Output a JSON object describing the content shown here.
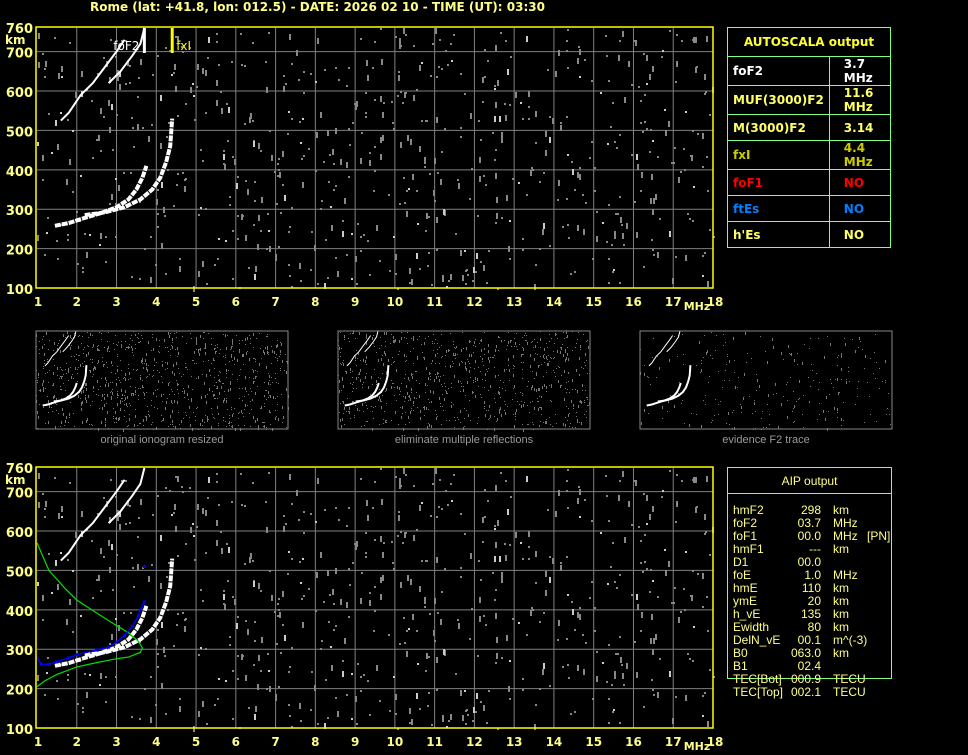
{
  "header": {
    "title": "Rome (lat: +41.8, lon: 012.5) - DATE: 2026 02 10 - TIME (UT): 03:30"
  },
  "colors": {
    "axis": "#ffff00",
    "grid": "#808080",
    "trace": "#ffffff",
    "noise": "#888888",
    "foF2_marker": "#ffffff",
    "fxI_marker": "#ffff00",
    "profile": "#00e000",
    "aip_trace": "#0000ff",
    "table_border": "#80ff80"
  },
  "chart_data": [
    {
      "type": "scatter",
      "name_plot": "upper-ionogram",
      "xlabel": "MHz",
      "ylabel": "km",
      "xlim": [
        1,
        18
      ],
      "ylim": [
        100,
        760
      ],
      "xticks": [
        "1",
        "2",
        "3",
        "4",
        "5",
        "6",
        "7",
        "8",
        "9",
        "10",
        "11",
        "12",
        "13",
        "14",
        "15",
        "16",
        "17",
        "18"
      ],
      "yticks": [
        "760",
        "700",
        "600",
        "500",
        "400",
        "300",
        "200",
        "100"
      ],
      "grid": true,
      "markers": [
        {
          "label": "foF2",
          "x": 3.7
        },
        {
          "label": "fxI",
          "x": 4.4
        }
      ],
      "traces": {
        "o_mode": [
          [
            1.45,
            258
          ],
          [
            1.8,
            265
          ],
          [
            2.2,
            278
          ],
          [
            2.6,
            290
          ],
          [
            3.0,
            305
          ],
          [
            3.3,
            325
          ],
          [
            3.5,
            350
          ],
          [
            3.65,
            380
          ],
          [
            3.75,
            410
          ]
        ],
        "x_mode": [
          [
            2.2,
            285
          ],
          [
            2.7,
            292
          ],
          [
            3.2,
            305
          ],
          [
            3.6,
            325
          ],
          [
            3.9,
            350
          ],
          [
            4.1,
            380
          ],
          [
            4.25,
            420
          ],
          [
            4.35,
            460
          ],
          [
            4.4,
            530
          ]
        ],
        "second_hop_o": [
          [
            1.6,
            525
          ],
          [
            1.8,
            545
          ],
          [
            2.1,
            590
          ],
          [
            2.4,
            620
          ],
          [
            2.7,
            660
          ],
          [
            3.0,
            700
          ],
          [
            3.2,
            730
          ]
        ],
        "second_hop_x": [
          [
            2.8,
            620
          ],
          [
            3.1,
            650
          ],
          [
            3.4,
            690
          ],
          [
            3.6,
            720
          ],
          [
            3.7,
            760
          ]
        ]
      }
    },
    {
      "type": "scatter",
      "name_plot": "lower-ionogram",
      "xlabel": "MHz",
      "ylabel": "km",
      "xlim": [
        1,
        18
      ],
      "ylim": [
        100,
        760
      ],
      "xticks": [
        "1",
        "2",
        "3",
        "4",
        "5",
        "6",
        "7",
        "8",
        "9",
        "10",
        "11",
        "12",
        "13",
        "14",
        "15",
        "16",
        "17",
        "18"
      ],
      "yticks": [
        "760",
        "700",
        "600",
        "500",
        "400",
        "300",
        "200",
        "100"
      ],
      "grid": true,
      "profile": [
        [
          1.0,
          570
        ],
        [
          1.3,
          500
        ],
        [
          1.7,
          455
        ],
        [
          2.0,
          425
        ],
        [
          2.5,
          392
        ],
        [
          3.0,
          360
        ],
        [
          3.3,
          342
        ],
        [
          3.55,
          320
        ],
        [
          3.65,
          303
        ],
        [
          3.6,
          292
        ],
        [
          3.3,
          280
        ],
        [
          3.0,
          276
        ],
        [
          2.5,
          266
        ],
        [
          2.0,
          255
        ],
        [
          1.5,
          236
        ],
        [
          1.2,
          220
        ],
        [
          1.0,
          205
        ]
      ],
      "aip_trace": [
        [
          1.0,
          278
        ],
        [
          1.1,
          262
        ],
        [
          1.3,
          262
        ],
        [
          1.5,
          268
        ],
        [
          1.8,
          278
        ],
        [
          2.0,
          286
        ],
        [
          2.5,
          298
        ],
        [
          2.8,
          305
        ],
        [
          3.0,
          318
        ],
        [
          3.2,
          335
        ],
        [
          3.4,
          358
        ],
        [
          3.55,
          385
        ],
        [
          3.6,
          400
        ],
        [
          3.7,
          420
        ]
      ],
      "aip_point": [
        3.7,
        510
      ]
    }
  ],
  "thumbnails": [
    {
      "caption": "original ionogram resized"
    },
    {
      "caption": "eliminate multiple reflections"
    },
    {
      "caption": "evidence F2 trace"
    }
  ],
  "autoscala": {
    "title": "AUTOSCALA output",
    "rows": [
      {
        "label": "foF2",
        "value": "3.7 MHz",
        "color": "#ffffff"
      },
      {
        "label": "MUF(3000)F2",
        "value": "11.6 MHz",
        "color": "#ffff66"
      },
      {
        "label": "M(3000)F2",
        "value": "3.14",
        "color": "#ffff66"
      },
      {
        "label": "fxI",
        "value": "4.4 MHz",
        "color": "#cccc00"
      },
      {
        "label": "foF1",
        "value": "NO",
        "color": "#ff0000"
      },
      {
        "label": "ftEs",
        "value": "NO",
        "color": "#0080ff"
      },
      {
        "label": "h'Es",
        "value": "NO",
        "color": "#ffff66"
      }
    ]
  },
  "aip": {
    "title": "AIP output",
    "rows": [
      {
        "name": "hmF2",
        "value": "298",
        "unit": "km",
        "extra": ""
      },
      {
        "name": "foF2",
        "value": "03.7",
        "unit": "MHz",
        "extra": ""
      },
      {
        "name": "foF1",
        "value": "00.0",
        "unit": "MHz",
        "extra": "[PN]"
      },
      {
        "name": "hmF1",
        "value": "---",
        "unit": "km",
        "extra": ""
      },
      {
        "name": "D1",
        "value": "00.0",
        "unit": "",
        "extra": ""
      },
      {
        "name": "foE",
        "value": "1.0",
        "unit": "MHz",
        "extra": ""
      },
      {
        "name": "hmE",
        "value": "110",
        "unit": "km",
        "extra": ""
      },
      {
        "name": "ymE",
        "value": "20",
        "unit": "km",
        "extra": ""
      },
      {
        "name": "h_vE",
        "value": "135",
        "unit": "km",
        "extra": ""
      },
      {
        "name": "Ewidth",
        "value": "80",
        "unit": "km",
        "extra": ""
      },
      {
        "name": "DelN_vE",
        "value": "00.1",
        "unit": "m^(-3)",
        "extra": ""
      },
      {
        "name": "B0",
        "value": "063.0",
        "unit": "km",
        "extra": ""
      },
      {
        "name": "B1",
        "value": "02.4",
        "unit": "",
        "extra": ""
      },
      {
        "name": "TEC[Bot]",
        "value": "000.9",
        "unit": "TECU",
        "extra": ""
      },
      {
        "name": "TEC[Top]",
        "value": "002.1",
        "unit": "TECU",
        "extra": ""
      }
    ]
  }
}
